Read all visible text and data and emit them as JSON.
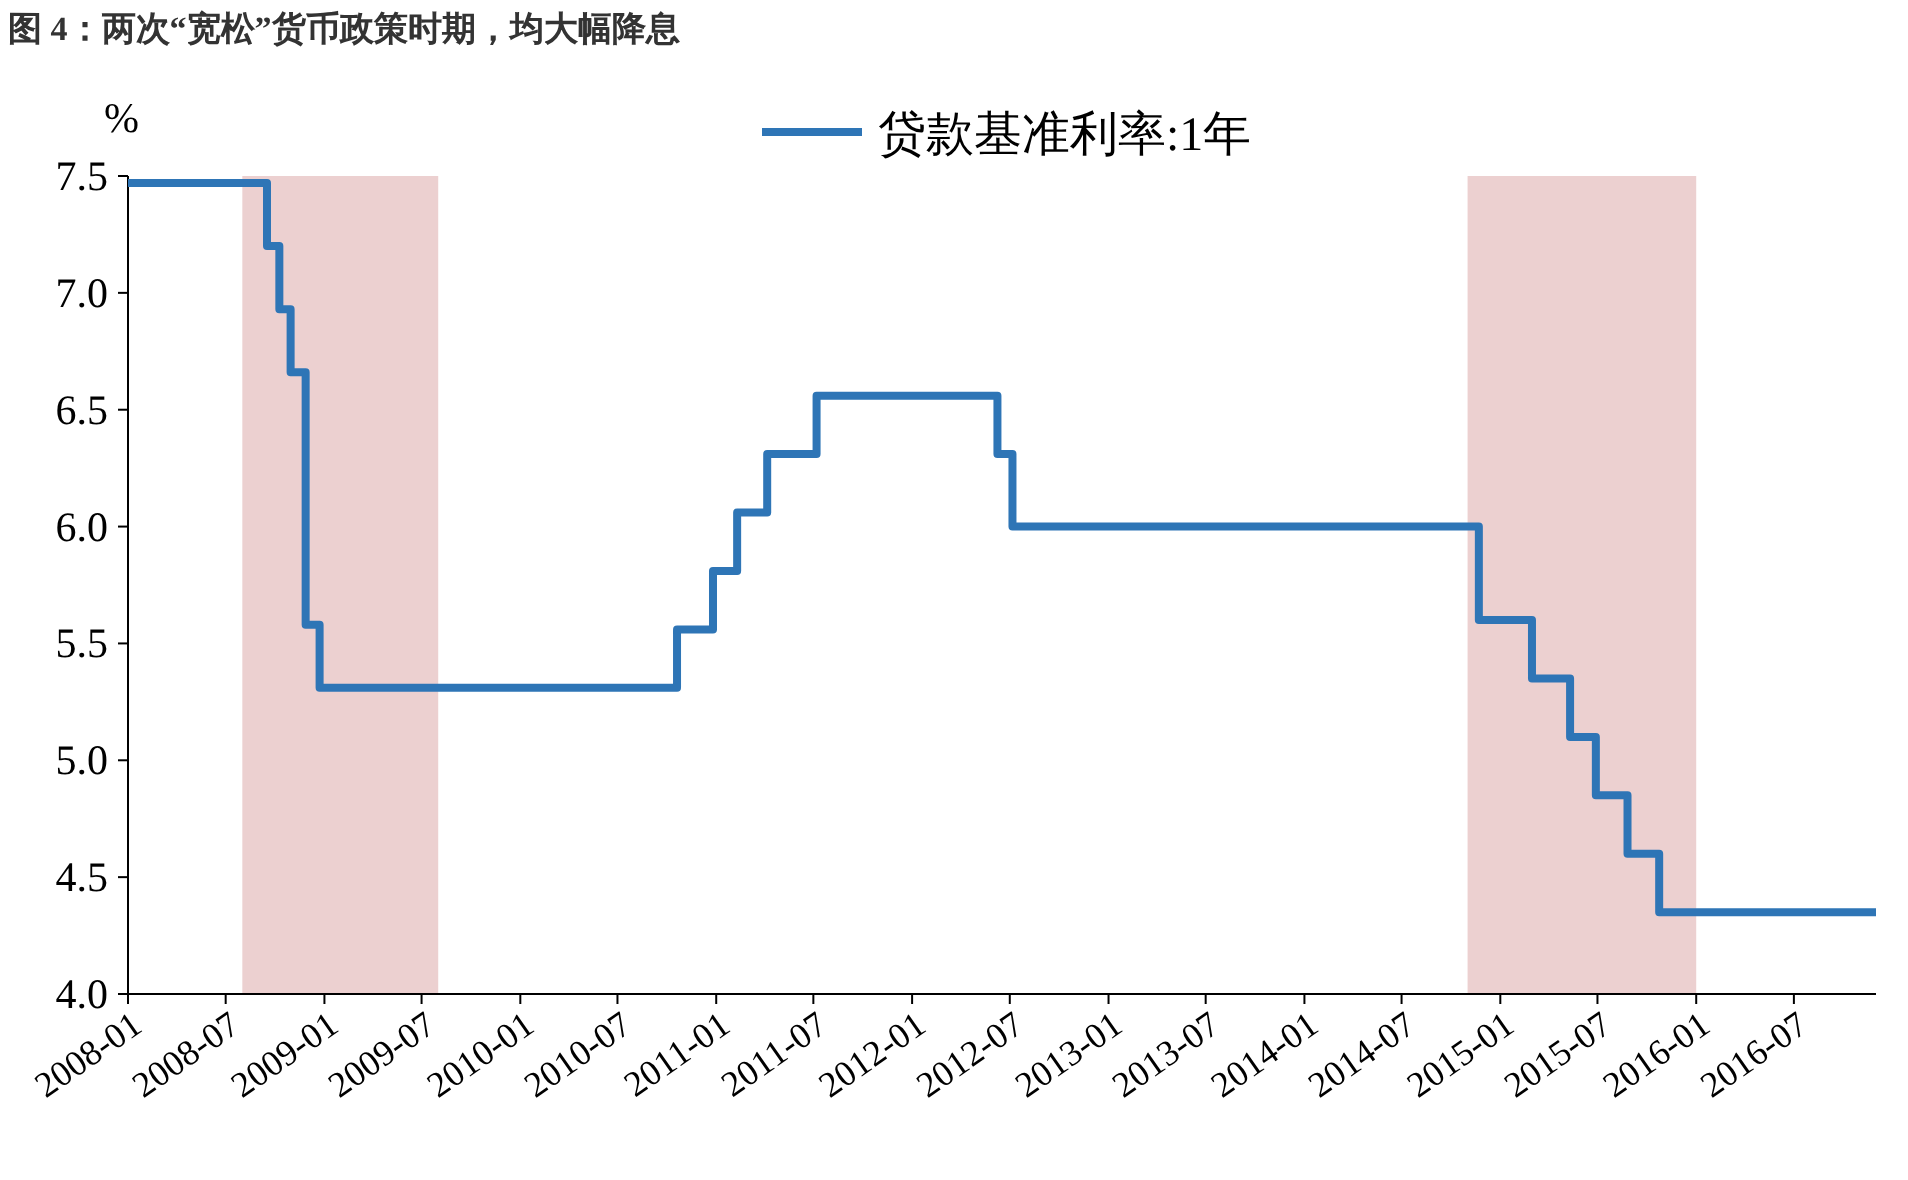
{
  "chart_data": {
    "type": "step",
    "title": "图 4：两次“宽松”货币政策时期，均大幅降息",
    "ylabel": "%",
    "x": [
      "2008-01-01",
      "2008-09-16",
      "2008-10-09",
      "2008-10-30",
      "2008-11-27",
      "2008-12-23",
      "2010-10-20",
      "2010-12-26",
      "2011-02-09",
      "2011-04-06",
      "2011-07-07",
      "2012-06-08",
      "2012-07-06",
      "2014-11-22",
      "2015-03-01",
      "2015-05-11",
      "2015-06-28",
      "2015-08-26",
      "2015-10-24",
      "2016-12-01"
    ],
    "series": [
      {
        "name": "贷款基准利率:1年",
        "color": "#2e75b6",
        "values": [
          7.47,
          7.2,
          6.93,
          6.66,
          5.58,
          5.31,
          5.56,
          5.81,
          6.06,
          6.31,
          6.56,
          6.31,
          6.0,
          5.6,
          5.35,
          5.1,
          4.85,
          4.6,
          4.35,
          4.35
        ]
      }
    ],
    "xlim": [
      "2008-01",
      "2016-12"
    ],
    "xticks": [
      "2008-01",
      "2008-07",
      "2009-01",
      "2009-07",
      "2010-01",
      "2010-07",
      "2011-01",
      "2011-07",
      "2012-01",
      "2012-07",
      "2013-01",
      "2013-07",
      "2014-01",
      "2014-07",
      "2015-01",
      "2015-07",
      "2016-01",
      "2016-07"
    ],
    "ylim": [
      4.0,
      7.5
    ],
    "yticks": [
      {
        "value": 4,
        "label": "4.0"
      },
      {
        "value": 4.5,
        "label": "4.5"
      },
      {
        "value": 5,
        "label": "5.0"
      },
      {
        "value": 5.5,
        "label": "5.5"
      },
      {
        "value": 6,
        "label": "6.0"
      },
      {
        "value": 6.5,
        "label": "6.5"
      },
      {
        "value": 7,
        "label": "7.0"
      },
      {
        "value": 7.5,
        "label": "7.5"
      }
    ],
    "bands": [
      {
        "axis": "x",
        "from": "2008-08",
        "to": "2009-08",
        "color": "#ecd0d0"
      },
      {
        "axis": "x",
        "from": "2014-11",
        "to": "2016-01",
        "color": "#ecd0d0"
      }
    ],
    "legend": "top"
  }
}
